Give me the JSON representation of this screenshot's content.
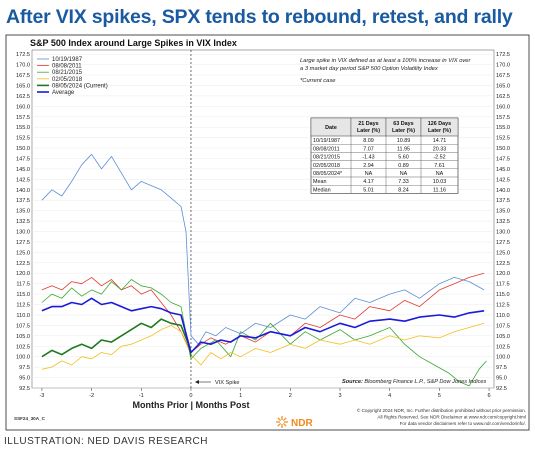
{
  "headline": "After VIX spikes, SPX tends to rebound, retest, and rally",
  "credit": "ILLUSTRATION: NED DAVIS RESEARCH",
  "chart_data": {
    "type": "line",
    "title": "S&P 500 Index around Large Spikes in VIX Index",
    "xlabel_left": "Months Prior",
    "xlabel_right": "Months Post",
    "xlim": [
      -3.2,
      6.1
    ],
    "ylim": [
      92.5,
      173.5
    ],
    "x_ticks": [
      "-3",
      "-2",
      "-1",
      "0",
      "1",
      "2",
      "3",
      "4",
      "5",
      "6"
    ],
    "y_ticks": [
      "172.5",
      "170.0",
      "167.5",
      "165.0",
      "162.5",
      "160.0",
      "157.5",
      "155.0",
      "152.5",
      "150.0",
      "147.5",
      "145.0",
      "142.5",
      "140.0",
      "137.5",
      "135.0",
      "132.5",
      "130.0",
      "127.5",
      "125.0",
      "122.5",
      "120.0",
      "117.5",
      "115.0",
      "112.5",
      "110.0",
      "107.5",
      "105.0",
      "102.5",
      "100.0",
      "97.5",
      "95.0",
      "92.5"
    ],
    "vix_spike_label": "VIX Spike",
    "note": [
      "Large spike in VIX defined as at least a 100% increase in VIX over",
      "a 3 market day period S&P 500 Option Volatility Index",
      "*Current case"
    ],
    "source": [
      "Source:",
      "Bloomberg Finance L.P., S&P Dow Jones Indices"
    ],
    "series": [
      {
        "name": "10/19/1987",
        "color": "#5b8fd6",
        "width": 0.8,
        "x": [
          -3.0,
          -2.8,
          -2.6,
          -2.4,
          -2.2,
          -2.0,
          -1.8,
          -1.6,
          -1.4,
          -1.2,
          -1.0,
          -0.8,
          -0.6,
          -0.4,
          -0.2,
          -0.1,
          0.0,
          0.15,
          0.3,
          0.5,
          0.7,
          1.0,
          1.3,
          1.6,
          2.0,
          2.3,
          2.6,
          3.0,
          3.3,
          3.6,
          4.0,
          4.3,
          4.6,
          5.0,
          5.3,
          5.6,
          5.9
        ],
        "y": [
          137.5,
          140.0,
          138.5,
          142.0,
          146.0,
          148.5,
          145.0,
          148.0,
          144.0,
          140.0,
          142.0,
          141.0,
          140.0,
          138.0,
          136.0,
          130.0,
          105.0,
          103.0,
          106.0,
          105.0,
          107.0,
          105.5,
          108.0,
          107.0,
          110.0,
          109.0,
          112.0,
          110.5,
          114.0,
          113.0,
          115.0,
          116.0,
          114.0,
          117.5,
          119.0,
          118.0,
          116.0
        ]
      },
      {
        "name": "08/08/2011",
        "color": "#e03a2f",
        "width": 0.8,
        "x": [
          -3.0,
          -2.8,
          -2.6,
          -2.4,
          -2.2,
          -2.0,
          -1.8,
          -1.6,
          -1.4,
          -1.2,
          -1.0,
          -0.8,
          -0.6,
          -0.4,
          -0.2,
          0.0,
          0.2,
          0.4,
          0.7,
          1.0,
          1.3,
          1.6,
          2.0,
          2.3,
          2.6,
          3.0,
          3.3,
          3.6,
          4.0,
          4.3,
          4.6,
          5.0,
          5.3,
          5.6,
          5.9
        ],
        "y": [
          116.0,
          117.0,
          116.0,
          118.0,
          117.5,
          119.0,
          117.0,
          118.5,
          116.0,
          117.0,
          115.0,
          116.0,
          113.0,
          110.0,
          106.0,
          101.0,
          103.0,
          104.5,
          103.0,
          105.0,
          103.5,
          106.0,
          105.0,
          108.0,
          107.0,
          110.0,
          109.0,
          112.0,
          111.0,
          113.5,
          112.0,
          116.0,
          117.5,
          119.0,
          120.0
        ]
      },
      {
        "name": "08/21/2015",
        "color": "#3aa832",
        "width": 0.8,
        "x": [
          -3.0,
          -2.8,
          -2.6,
          -2.4,
          -2.2,
          -2.0,
          -1.8,
          -1.6,
          -1.4,
          -1.2,
          -1.0,
          -0.8,
          -0.6,
          -0.4,
          -0.2,
          0.0,
          0.2,
          0.5,
          0.8,
          1.0,
          1.3,
          1.6,
          2.0,
          2.3,
          2.6,
          3.0,
          3.3,
          3.6,
          4.0,
          4.3,
          4.6,
          4.9,
          5.2,
          5.4,
          5.6,
          5.8,
          5.95
        ],
        "y": [
          113.0,
          115.0,
          114.0,
          116.5,
          114.5,
          116.0,
          115.0,
          118.0,
          116.0,
          118.5,
          117.0,
          116.5,
          115.0,
          113.0,
          112.0,
          99.5,
          102.0,
          104.0,
          100.0,
          106.0,
          104.0,
          108.0,
          103.0,
          106.0,
          104.0,
          106.5,
          104.0,
          105.0,
          107.0,
          103.0,
          100.0,
          98.0,
          96.0,
          94.0,
          93.0,
          97.0,
          99.0
        ]
      },
      {
        "name": "02/05/2018",
        "color": "#f0c020",
        "width": 0.8,
        "x": [
          -3.0,
          -2.8,
          -2.6,
          -2.4,
          -2.2,
          -2.0,
          -1.8,
          -1.6,
          -1.4,
          -1.2,
          -1.0,
          -0.8,
          -0.6,
          -0.4,
          -0.2,
          0.0,
          0.2,
          0.4,
          0.6,
          0.8,
          1.0,
          1.3,
          1.6,
          2.0,
          2.3,
          2.6,
          3.0,
          3.3,
          3.6,
          4.0,
          4.3,
          4.6,
          5.0,
          5.3,
          5.6,
          5.9
        ],
        "y": [
          97.0,
          97.5,
          99.0,
          98.0,
          100.0,
          99.5,
          101.0,
          100.5,
          102.5,
          103.0,
          104.0,
          105.0,
          106.5,
          107.5,
          106.0,
          100.5,
          98.0,
          101.0,
          99.5,
          101.0,
          100.0,
          102.0,
          101.0,
          103.0,
          102.0,
          104.0,
          103.0,
          104.0,
          103.0,
          105.0,
          104.0,
          105.0,
          104.5,
          106.0,
          107.0,
          108.0
        ]
      },
      {
        "name": "08/05/2024 (Current)",
        "color": "#1f7a1f",
        "width": 1.6,
        "x": [
          -3.0,
          -2.8,
          -2.6,
          -2.4,
          -2.2,
          -2.0,
          -1.8,
          -1.6,
          -1.4,
          -1.2,
          -1.0,
          -0.8,
          -0.6,
          -0.4,
          -0.2,
          -0.05,
          0.0
        ],
        "y": [
          100.0,
          101.5,
          100.5,
          102.0,
          103.0,
          102.0,
          104.0,
          103.5,
          105.0,
          106.5,
          108.0,
          107.0,
          109.0,
          108.0,
          107.5,
          103.0,
          100.0
        ]
      },
      {
        "name": "Average",
        "color": "#1a1adb",
        "width": 1.6,
        "x": [
          -3.0,
          -2.8,
          -2.6,
          -2.4,
          -2.2,
          -2.0,
          -1.8,
          -1.6,
          -1.4,
          -1.2,
          -1.0,
          -0.8,
          -0.6,
          -0.4,
          -0.2,
          0.0,
          0.2,
          0.4,
          0.6,
          0.8,
          1.0,
          1.3,
          1.6,
          2.0,
          2.3,
          2.6,
          3.0,
          3.3,
          3.6,
          4.0,
          4.3,
          4.6,
          5.0,
          5.3,
          5.6,
          5.9
        ],
        "y": [
          111.0,
          112.0,
          112.0,
          113.0,
          112.5,
          114.0,
          112.5,
          113.0,
          112.0,
          111.0,
          111.5,
          112.0,
          111.5,
          110.5,
          110.0,
          101.0,
          103.5,
          103.0,
          104.0,
          103.5,
          105.0,
          104.5,
          106.0,
          105.0,
          107.0,
          106.0,
          108.0,
          107.0,
          108.5,
          109.0,
          108.5,
          109.5,
          110.0,
          109.5,
          110.5,
          111.0
        ]
      }
    ],
    "table": {
      "headers": [
        [
          "Date"
        ],
        [
          "21 Days",
          "Later (%)"
        ],
        [
          "63 Days",
          "Later (%)"
        ],
        [
          "126 Days",
          "Later (%)"
        ]
      ],
      "rows": [
        [
          "10/19/1987",
          "8.09",
          "10.89",
          "14.71"
        ],
        [
          "08/08/2011",
          "7.07",
          "11.95",
          "20.33"
        ],
        [
          "08/21/2015",
          "-1.43",
          "5.60",
          "-2.52"
        ],
        [
          "02/05/2018",
          "2.94",
          "0.89",
          "7.61"
        ],
        [
          "08/05/2024*",
          "NA",
          "NA",
          "NA"
        ],
        [
          "Mean",
          "4.17",
          "7.33",
          "10.03"
        ],
        [
          "Median",
          "5.01",
          "8.24",
          "11.16"
        ]
      ]
    }
  },
  "footer": {
    "code": "SSF24_30A_C",
    "logo": "NDR",
    "copyright": [
      "© Copyright 2024 NDR, Inc. Further distribution prohibited without prior permission.",
      "All Rights Reserved. See NDR Disclaimer at www.ndr.com/copyright.html",
      "For data vendor disclaimers refer to www.ndr.com/vendorinfo/."
    ]
  }
}
